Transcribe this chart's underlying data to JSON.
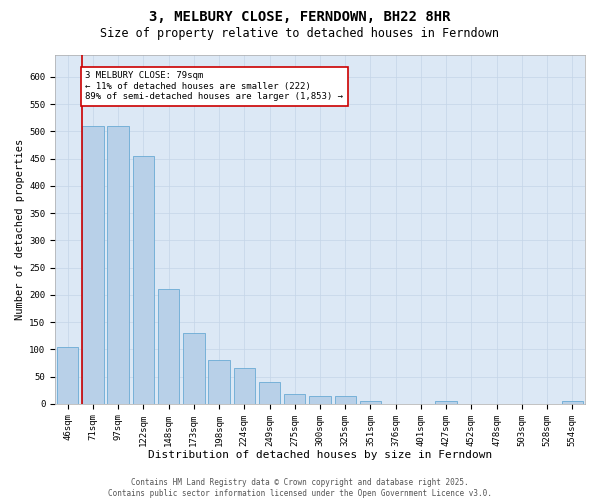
{
  "title": "3, MELBURY CLOSE, FERNDOWN, BH22 8HR",
  "subtitle": "Size of property relative to detached houses in Ferndown",
  "xlabel": "Distribution of detached houses by size in Ferndown",
  "ylabel": "Number of detached properties",
  "categories": [
    "46sqm",
    "71sqm",
    "97sqm",
    "122sqm",
    "148sqm",
    "173sqm",
    "198sqm",
    "224sqm",
    "249sqm",
    "275sqm",
    "300sqm",
    "325sqm",
    "351sqm",
    "376sqm",
    "401sqm",
    "427sqm",
    "452sqm",
    "478sqm",
    "503sqm",
    "528sqm",
    "554sqm"
  ],
  "values": [
    105,
    510,
    510,
    455,
    210,
    130,
    80,
    65,
    40,
    18,
    15,
    15,
    5,
    0,
    0,
    5,
    0,
    0,
    0,
    0,
    5
  ],
  "bar_color": "#b8d0e8",
  "bar_edge_color": "#6aaad4",
  "vline_x_index": 1,
  "vline_color": "#cc0000",
  "annotation_text": "3 MELBURY CLOSE: 79sqm\n← 11% of detached houses are smaller (222)\n89% of semi-detached houses are larger (1,853) →",
  "annotation_box_facecolor": "#ffffff",
  "annotation_box_edgecolor": "#cc0000",
  "ylim": [
    0,
    640
  ],
  "yticks": [
    0,
    50,
    100,
    150,
    200,
    250,
    300,
    350,
    400,
    450,
    500,
    550,
    600
  ],
  "plot_bg_color": "#dce8f5",
  "grid_color": "#c5d5e8",
  "footer": "Contains HM Land Registry data © Crown copyright and database right 2025.\nContains public sector information licensed under the Open Government Licence v3.0.",
  "title_fontsize": 10,
  "subtitle_fontsize": 8.5,
  "xlabel_fontsize": 8,
  "ylabel_fontsize": 7.5,
  "tick_fontsize": 6.5,
  "annot_fontsize": 6.5,
  "footer_fontsize": 5.5
}
